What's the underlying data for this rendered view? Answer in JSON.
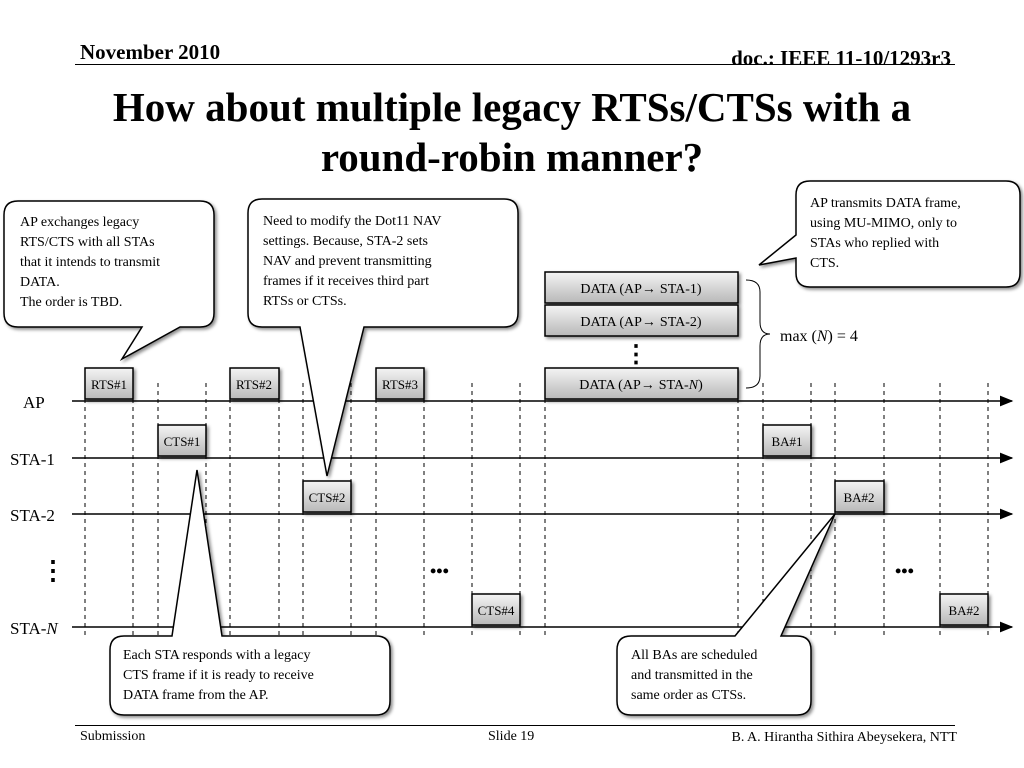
{
  "header": {
    "date": "November 2010",
    "doc_id": "doc.: IEEE 11-10/1293r3"
  },
  "title": {
    "line1": "How about multiple legacy RTSs/CTSs with a",
    "line2": "round-robin manner?"
  },
  "timeline_labels": {
    "ap": "AP",
    "sta1": "STA-1",
    "sta2": "STA-2",
    "staN_prefix": "STA-",
    "staN_italic": "N",
    "vertical_ellipsis": "⋮",
    "ellipsis": "•••"
  },
  "frames": {
    "rts1": "RTS#1",
    "rts2": "RTS#2",
    "rts3": "RTS#3",
    "cts1": "CTS#1",
    "cts2": "CTS#2",
    "cts4": "CTS#4",
    "ba1": "BA#1",
    "ba2": "BA#2",
    "ba2_staN": "BA#2"
  },
  "data_frames": {
    "f1_prefix": "DATA (AP",
    "f1_suffix": "STA-1)",
    "f2_prefix": "DATA (AP",
    "f2_suffix": "STA-2)",
    "fN_prefix": "DATA (AP",
    "fN_suffix_text": "STA-",
    "fN_suffix_italic": "N",
    "fN_close": ")",
    "arrow": "→",
    "dots": "⋮"
  },
  "max_label": {
    "prefix": "max (",
    "italic": "N",
    "suffix": ") = 4"
  },
  "callouts": {
    "ap_exchanges": [
      "AP exchanges legacy",
      "RTS/CTS with all STAs",
      "that it intends to transmit",
      "DATA.",
      "The order is TBD."
    ],
    "nav": [
      "Need to modify the Dot11 NAV",
      "settings. Because, STA-2 sets",
      "NAV and prevent transmitting",
      "frames if it receives third part",
      "RTSs or CTSs."
    ],
    "ap_transmits": [
      "AP transmits DATA frame,",
      "using MU-MIMO, only to",
      "STAs who replied with",
      "CTS."
    ],
    "sta_responds": [
      "Each STA responds with a legacy",
      "CTS frame if it is ready to receive",
      "DATA frame from the AP."
    ],
    "all_bas": [
      "All BAs are scheduled",
      "and transmitted in the",
      "same order as CTSs."
    ]
  },
  "footer": {
    "left": "Submission",
    "center": "Slide 19",
    "right": "B. A. Hirantha Sithira Abeysekera, NTT"
  },
  "colors": {
    "frame_fill_top": "#f2f2f2",
    "frame_fill_bottom": "#bdbdbd",
    "line": "#000000",
    "callout_bg": "#ffffff"
  }
}
